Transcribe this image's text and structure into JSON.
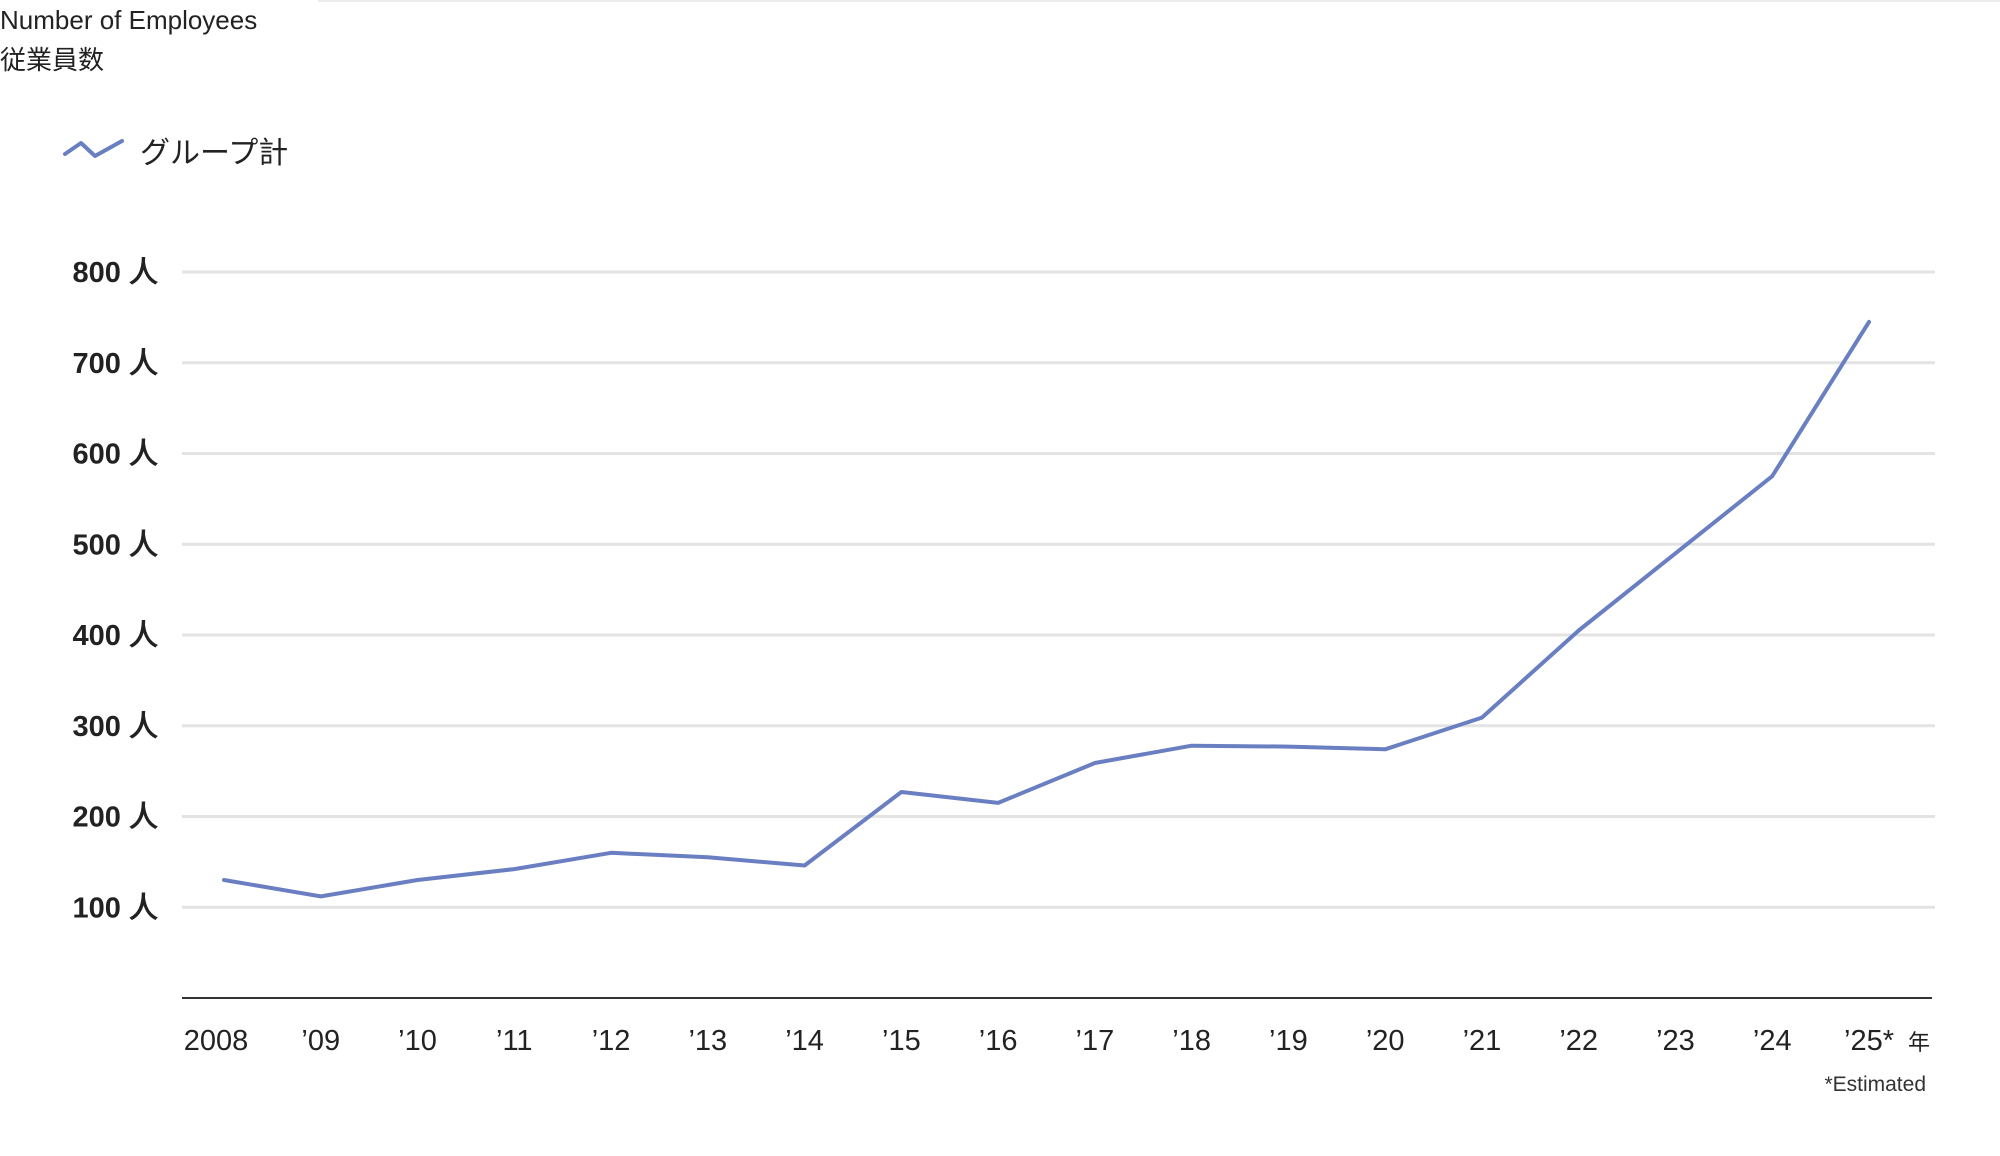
{
  "header": {
    "title_en": "Number of Employees",
    "title_ja": "従業員数"
  },
  "legend": {
    "label": "グループ計"
  },
  "colors": {
    "series": "#6a7fc1",
    "grid": "#e3e3e3",
    "axis": "#333333",
    "text": "#222222"
  },
  "chart_data": {
    "type": "line",
    "title": "Number of Employees",
    "subtitle": "従業員数",
    "xlabel": "",
    "ylabel": "",
    "x_unit": "年",
    "y_unit": "人",
    "ylim": [
      0,
      800
    ],
    "y_ticks": [
      100,
      200,
      300,
      400,
      500,
      600,
      700,
      800
    ],
    "y_tick_labels": [
      "100 人",
      "200 人",
      "300 人",
      "400 人",
      "500 人",
      "600 人",
      "700 人",
      "800 人"
    ],
    "grid": true,
    "legend_position": "top-left",
    "categories": [
      "2008",
      "’09",
      "’10",
      "’11",
      "’12",
      "’13",
      "’14",
      "’15",
      "’16",
      "’17",
      "’18",
      "’19",
      "’20",
      "’21",
      "’22",
      "’23",
      "’24",
      "’25*"
    ],
    "series": [
      {
        "name": "グループ計",
        "values": [
          130,
          112,
          130,
          142,
          160,
          155,
          146,
          227,
          215,
          259,
          278,
          277,
          274,
          309,
          405,
          490,
          575,
          745
        ]
      }
    ],
    "footnote": "*Estimated"
  }
}
